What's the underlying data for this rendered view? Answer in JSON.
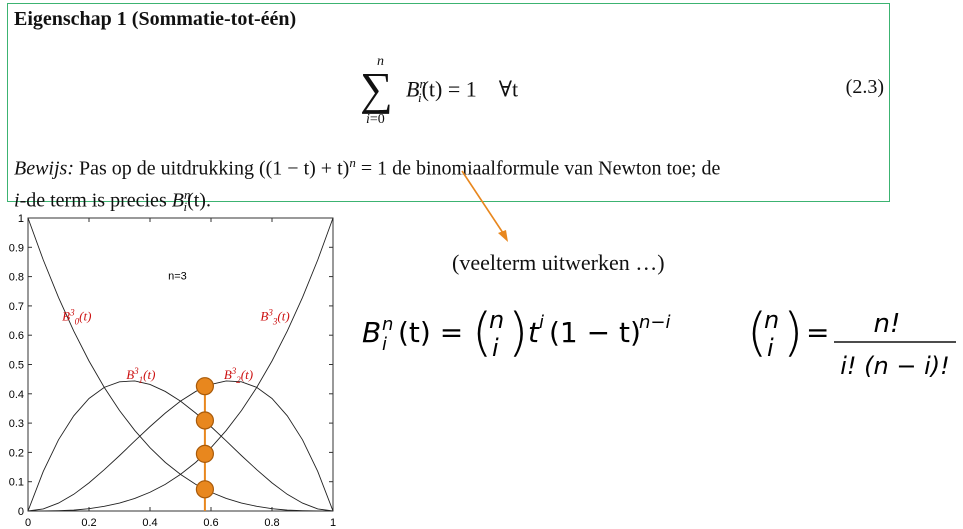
{
  "property": {
    "title": "Eigenschap 1 (Sommatie-tot-één)",
    "equation": {
      "sum_upper": "n",
      "sum_lower_var": "i",
      "sum_lower_rest": "=0",
      "lhs_symbol": "B",
      "lhs_super": "n",
      "lhs_sub": "i",
      "lhs_arg": "(t) = 1",
      "forall": "∀t",
      "number": "(2.3)"
    },
    "proof": {
      "label": "Bewijs:",
      "text1": "Pas op de uitdrukking ((1 − t) + t)",
      "text1_super": "n",
      "text2": " = 1 de binomiaalformule van Newton toe; de ",
      "text3_italic": "i",
      "text3": "-de term is precies ",
      "text4_symbol": "B",
      "text4_super": "n",
      "text4_sub": "i",
      "text4_arg": "(t)."
    }
  },
  "annotation": {
    "text": "(veelterm uitwerken …)"
  },
  "formula": {
    "lhs": "B",
    "lhs_super": "n",
    "lhs_sub": "i",
    "lhs_arg": "(t) =",
    "binom_top": "n",
    "binom_bottom": "i",
    "rhs_t": "t",
    "rhs_t_super": "i",
    "rhs_paren": "(1 − t)",
    "rhs_paren_super": "n−i",
    "binom2_top": "n",
    "binom2_bottom": "i",
    "equals": "=",
    "frac_num": "n!",
    "frac_den": "i! (n − i)!"
  },
  "chart_data": {
    "type": "line",
    "title": "n=3",
    "x": [
      0,
      0.05,
      0.1,
      0.15,
      0.2,
      0.25,
      0.3,
      0.35,
      0.4,
      0.45,
      0.5,
      0.55,
      0.6,
      0.65,
      0.7,
      0.75,
      0.8,
      0.85,
      0.9,
      0.95,
      1
    ],
    "series": [
      {
        "name": "B_0^3(t)",
        "values": [
          1,
          0.857,
          0.729,
          0.614,
          0.512,
          0.422,
          0.343,
          0.275,
          0.216,
          0.166,
          0.125,
          0.091,
          0.064,
          0.043,
          0.027,
          0.016,
          0.008,
          0.003,
          0.001,
          0.0001,
          0
        ]
      },
      {
        "name": "B_1^3(t)",
        "values": [
          0,
          0.135,
          0.243,
          0.325,
          0.384,
          0.422,
          0.441,
          0.444,
          0.432,
          0.408,
          0.375,
          0.334,
          0.288,
          0.239,
          0.189,
          0.141,
          0.096,
          0.057,
          0.027,
          0.007,
          0
        ]
      },
      {
        "name": "B_2^3(t)",
        "values": [
          0,
          0.007,
          0.027,
          0.057,
          0.096,
          0.141,
          0.189,
          0.239,
          0.288,
          0.334,
          0.375,
          0.408,
          0.432,
          0.444,
          0.441,
          0.422,
          0.384,
          0.325,
          0.243,
          0.135,
          0
        ]
      },
      {
        "name": "B_3^3(t)",
        "values": [
          0,
          0.0001,
          0.001,
          0.003,
          0.008,
          0.016,
          0.027,
          0.043,
          0.064,
          0.091,
          0.125,
          0.166,
          0.216,
          0.275,
          0.343,
          0.422,
          0.512,
          0.614,
          0.729,
          0.857,
          1
        ]
      }
    ],
    "series_labels": [
      {
        "main": "B",
        "sup": "3",
        "sub": "0",
        "arg": "(t)",
        "x": 0.16,
        "y": 0.65
      },
      {
        "main": "B",
        "sup": "3",
        "sub": "1",
        "arg": "(t)",
        "x": 0.37,
        "y": 0.45
      },
      {
        "main": "B",
        "sup": "3",
        "sub": "2",
        "arg": "(t)",
        "x": 0.69,
        "y": 0.45
      },
      {
        "main": "B",
        "sup": "3",
        "sub": "3",
        "arg": "(t)",
        "x": 0.81,
        "y": 0.65
      }
    ],
    "marker_t": 0.58,
    "marker_values": [
      0.074,
      0.309,
      0.426,
      0.195
    ],
    "xlim": [
      0,
      1
    ],
    "ylim": [
      0,
      1
    ],
    "xticks": [
      "0",
      "0.2",
      "0.4",
      "0.6",
      "0.8",
      "1"
    ],
    "yticks": [
      "0",
      "0.1",
      "0.2",
      "0.3",
      "0.4",
      "0.5",
      "0.6",
      "0.7",
      "0.8",
      "0.9",
      "1"
    ],
    "grid": false,
    "colors": {
      "curve": "#222222",
      "label": "#cc1111",
      "marker": "#e8871e",
      "marker_edge": "#a85a0a"
    }
  }
}
